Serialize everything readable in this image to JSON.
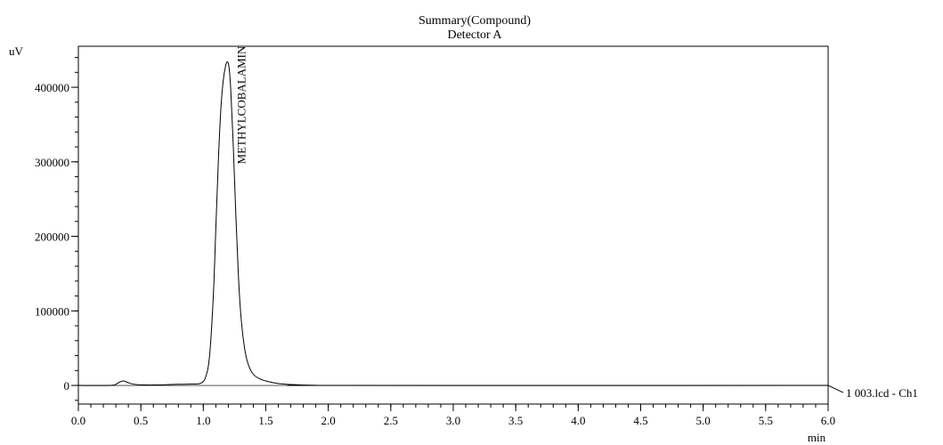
{
  "chart_data": {
    "type": "line",
    "title": "Summary(Compound)",
    "subtitle": "Detector A",
    "xlabel": "min",
    "ylabel": "uV",
    "xlim": [
      0.0,
      6.0
    ],
    "ylim": [
      -25000,
      455000
    ],
    "x_ticks": [
      0.0,
      0.5,
      1.0,
      1.5,
      2.0,
      2.5,
      3.0,
      3.5,
      4.0,
      4.5,
      5.0,
      5.5,
      6.0
    ],
    "x_tick_labels": [
      "0.0",
      "0.5",
      "1.0",
      "1.5",
      "2.0",
      "2.5",
      "3.0",
      "3.5",
      "4.0",
      "4.5",
      "5.0",
      "5.5",
      "6.0"
    ],
    "x_minor_step": 0.1,
    "y_ticks": [
      0,
      100000,
      200000,
      300000,
      400000
    ],
    "y_tick_labels": [
      "0",
      "100000",
      "200000",
      "300000",
      "400000"
    ],
    "y_minor_step": 20000,
    "grid": false,
    "series": [
      {
        "name": "1 003.lcd - Ch1",
        "color": "#000000",
        "x": [
          0.0,
          0.25,
          0.3,
          0.33,
          0.36,
          0.38,
          0.41,
          0.45,
          0.5,
          0.6,
          0.7,
          0.8,
          0.9,
          0.98,
          1.02,
          1.05,
          1.08,
          1.1,
          1.12,
          1.14,
          1.16,
          1.18,
          1.19,
          1.2,
          1.21,
          1.22,
          1.24,
          1.26,
          1.28,
          1.3,
          1.33,
          1.36,
          1.4,
          1.45,
          1.5,
          1.55,
          1.6,
          1.7,
          1.8,
          1.9,
          2.0,
          6.0
        ],
        "y": [
          0,
          0,
          1500,
          4500,
          6000,
          5000,
          3000,
          1500,
          800,
          600,
          1000,
          1500,
          1800,
          3000,
          12000,
          40000,
          120000,
          210000,
          300000,
          370000,
          410000,
          430000,
          434000,
          432000,
          420000,
          395000,
          320000,
          230000,
          150000,
          95000,
          50000,
          28000,
          15000,
          9000,
          6000,
          4000,
          2500,
          1200,
          500,
          200,
          0,
          0
        ]
      }
    ],
    "baseline": {
      "x": [
        0.0,
        6.0
      ],
      "y": [
        0,
        0
      ]
    },
    "annotations": [
      {
        "text": "METHYLCOBALAMIN",
        "x": 1.2,
        "y": 434000,
        "orientation": "vertical"
      }
    ],
    "legend": {
      "entries": [
        "1 003.lcd - Ch1"
      ],
      "placement": "right of plot, at baseline"
    }
  }
}
